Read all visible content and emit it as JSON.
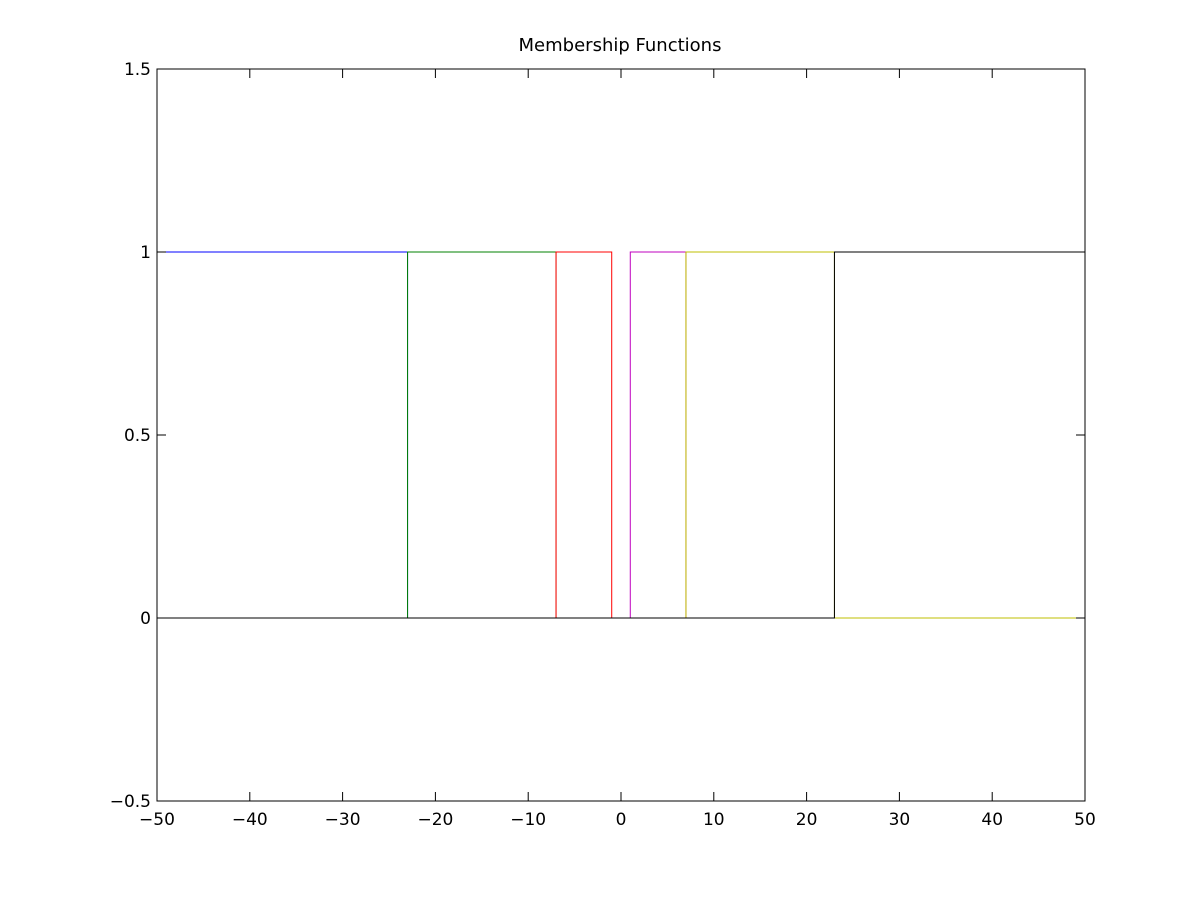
{
  "chart_data": {
    "type": "line",
    "title": "Membership Functions",
    "xlabel": "",
    "ylabel": "",
    "xlim": [
      -50,
      50
    ],
    "ylim": [
      -0.5,
      1.5
    ],
    "x_ticks": [
      -50,
      -40,
      -30,
      -20,
      -10,
      0,
      10,
      20,
      30,
      40,
      50
    ],
    "x_tick_labels": [
      "−50",
      "−40",
      "−30",
      "−20",
      "−10",
      "0",
      "10",
      "20",
      "30",
      "40",
      "50"
    ],
    "y_ticks": [
      -0.5,
      0,
      0.5,
      1,
      1.5
    ],
    "y_tick_labels": [
      "−0.5",
      "0",
      "0.5",
      "1",
      "1.5"
    ],
    "grid": false,
    "series": [
      {
        "color": "#0000ff",
        "x": [
          -50,
          -23,
          -23,
          50
        ],
        "y": [
          1,
          1,
          0,
          0
        ]
      },
      {
        "color": "#008000",
        "x": [
          -50,
          -23,
          -23,
          -7,
          -7,
          50
        ],
        "y": [
          0,
          0,
          1,
          1,
          0,
          0
        ]
      },
      {
        "color": "#ff0000",
        "x": [
          -50,
          -7,
          -7,
          -1,
          -1,
          50
        ],
        "y": [
          0,
          0,
          1,
          1,
          0,
          0
        ]
      },
      {
        "color": "#bf00bf",
        "x": [
          -50,
          1,
          1,
          7,
          7,
          50
        ],
        "y": [
          0,
          0,
          1,
          1,
          0,
          0
        ]
      },
      {
        "color": "#bfbf00",
        "x": [
          -50,
          7,
          7,
          23,
          23,
          50
        ],
        "y": [
          0,
          0,
          1,
          1,
          0,
          0
        ]
      },
      {
        "color": "#000000",
        "x": [
          -50,
          23,
          23,
          50
        ],
        "y": [
          0,
          0,
          1,
          1
        ]
      }
    ]
  }
}
